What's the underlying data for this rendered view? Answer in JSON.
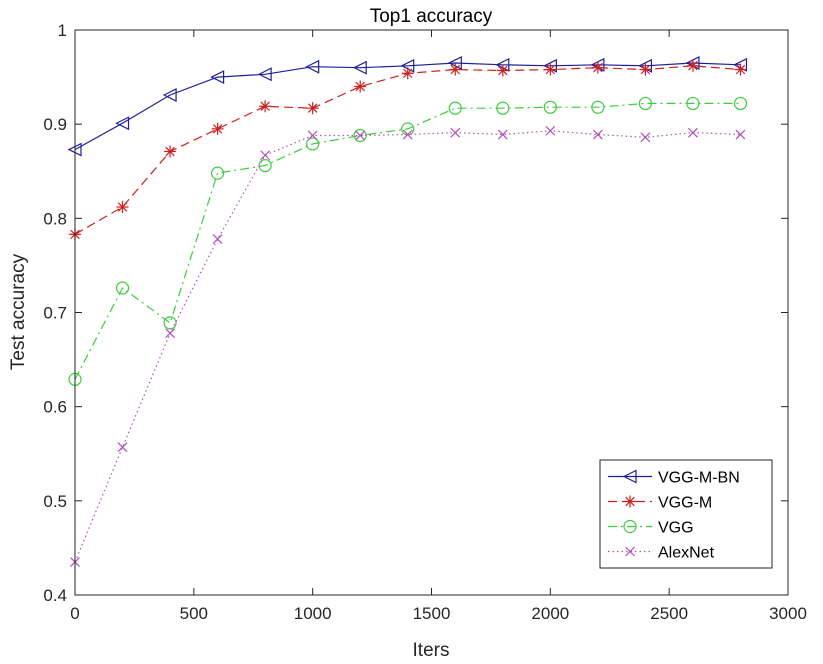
{
  "chart_data": {
    "type": "line",
    "title": "Top1 accuracy",
    "xlabel": "Iters",
    "ylabel": "Test accuracy",
    "xlim": [
      0,
      3000
    ],
    "ylim": [
      0.4,
      1.0
    ],
    "x_ticks": [
      0,
      500,
      1000,
      1500,
      2000,
      2500,
      3000
    ],
    "y_ticks": [
      0.4,
      0.5,
      0.6,
      0.7,
      0.8,
      0.9,
      1.0
    ],
    "x_tick_labels": [
      "0",
      "500",
      "1000",
      "1500",
      "2000",
      "2500",
      "3000"
    ],
    "y_tick_labels": [
      "0.4",
      "0.5",
      "0.6",
      "0.7",
      "0.8",
      "0.9",
      "1"
    ],
    "grid": false,
    "legend_position": "bottom-right",
    "x": [
      0,
      200,
      400,
      600,
      800,
      1000,
      1200,
      1400,
      1600,
      1800,
      2000,
      2200,
      2400,
      2600,
      2800
    ],
    "series": [
      {
        "name": "VGG-M-BN",
        "color": "#1f1f9a",
        "line_style": "solid",
        "marker": "triangle-left",
        "values": [
          0.873,
          0.901,
          0.931,
          0.95,
          0.953,
          0.961,
          0.96,
          0.962,
          0.965,
          0.963,
          0.962,
          0.963,
          0.962,
          0.965,
          0.963
        ]
      },
      {
        "name": "VGG-M",
        "color": "#cc2020",
        "line_style": "dashed",
        "marker": "asterisk",
        "values": [
          0.783,
          0.812,
          0.871,
          0.895,
          0.919,
          0.917,
          0.94,
          0.954,
          0.958,
          0.957,
          0.958,
          0.96,
          0.958,
          0.962,
          0.958
        ]
      },
      {
        "name": "VGG",
        "color": "#3ecc3e",
        "line_style": "dash-dot",
        "marker": "circle",
        "values": [
          0.629,
          0.726,
          0.689,
          0.848,
          0.856,
          0.879,
          0.888,
          0.895,
          0.917,
          0.917,
          0.918,
          0.918,
          0.922,
          0.922,
          0.922
        ]
      },
      {
        "name": "AlexNet",
        "color": "#b050b8",
        "line_style": "dotted",
        "marker": "x",
        "values": [
          0.435,
          0.557,
          0.678,
          0.778,
          0.867,
          0.888,
          0.888,
          0.889,
          0.891,
          0.889,
          0.893,
          0.889,
          0.886,
          0.891,
          0.889
        ]
      }
    ]
  }
}
